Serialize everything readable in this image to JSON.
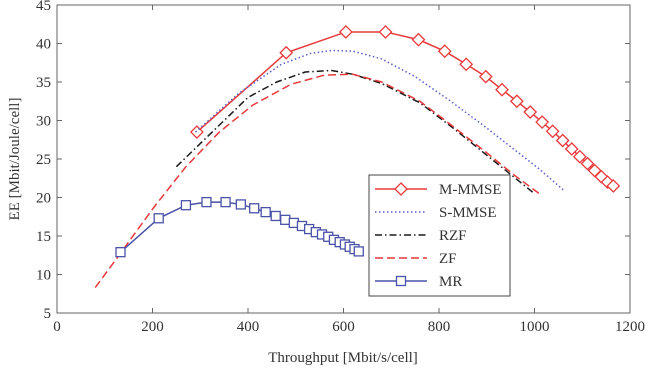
{
  "chart_data": {
    "type": "line",
    "xlabel": "Throughput [Mbit/s/cell]",
    "ylabel": "EE [Mbit/Joule/cell]",
    "xlim": [
      0,
      1200
    ],
    "ylim": [
      5,
      45
    ],
    "xticks": [
      0,
      200,
      400,
      600,
      800,
      1000,
      1200
    ],
    "yticks": [
      5,
      10,
      15,
      20,
      25,
      30,
      35,
      40,
      45
    ],
    "grid": false,
    "legend_position": "bottom-right",
    "series": [
      {
        "name": "M-MMSE",
        "color": "#e8383a",
        "dash": "solid",
        "marker": "diamond",
        "x": [
          293,
          480,
          605,
          688,
          757,
          812,
          857,
          898,
          932,
          963,
          991,
          1016,
          1038,
          1059,
          1078,
          1095,
          1111,
          1126,
          1140,
          1153,
          1165
        ],
        "y": [
          28.5,
          38.8,
          41.5,
          41.5,
          40.5,
          39.0,
          37.3,
          35.7,
          34.0,
          32.5,
          31.1,
          29.8,
          28.6,
          27.4,
          26.3,
          25.3,
          24.4,
          23.5,
          22.7,
          22.0,
          21.5
        ]
      },
      {
        "name": "S-MMSE",
        "color": "#5a5fc8",
        "dash": "dotted",
        "marker": "none",
        "x": [
          290,
          380,
          470,
          530,
          575,
          620,
          680,
          750,
          820,
          890,
          950,
          1010,
          1060
        ],
        "y": [
          28.5,
          33.5,
          37.3,
          38.7,
          39.1,
          39.0,
          38.0,
          35.7,
          32.7,
          29.5,
          26.6,
          23.7,
          21.0
        ]
      },
      {
        "name": "RZF",
        "color": "#1a1a1a",
        "dash": "dashdot",
        "marker": "none",
        "x": [
          250,
          300,
          350,
          400,
          460,
          520,
          575,
          620,
          680,
          760,
          830,
          890,
          950,
          1000
        ],
        "y": [
          24.0,
          27.0,
          30.0,
          33.0,
          35.0,
          36.3,
          36.5,
          36.0,
          34.8,
          32.3,
          29.0,
          26.0,
          23.0,
          20.5
        ]
      },
      {
        "name": "ZF",
        "color": "#e8383a",
        "dash": "dashed",
        "marker": "none",
        "x": [
          80,
          130,
          200,
          270,
          340,
          410,
          490,
          560,
          620,
          680,
          760,
          830,
          900,
          960,
          1010
        ],
        "y": [
          8.3,
          12.5,
          18.5,
          24.0,
          28.5,
          32.0,
          34.7,
          35.9,
          36.0,
          35.0,
          32.5,
          29.2,
          25.8,
          22.8,
          20.5
        ]
      },
      {
        "name": "MR",
        "color": "#4a53a8",
        "dash": "solid",
        "marker": "square",
        "x": [
          133,
          213,
          270,
          313,
          353,
          385,
          413,
          437,
          458,
          478,
          496,
          513,
          528,
          542,
          555,
          568,
          580,
          592,
          603,
          613,
          623,
          632
        ],
        "y": [
          12.9,
          17.3,
          19.0,
          19.4,
          19.4,
          19.1,
          18.6,
          18.1,
          17.6,
          17.1,
          16.7,
          16.3,
          15.9,
          15.5,
          15.2,
          14.9,
          14.5,
          14.2,
          13.9,
          13.6,
          13.3,
          13.0
        ]
      }
    ]
  }
}
